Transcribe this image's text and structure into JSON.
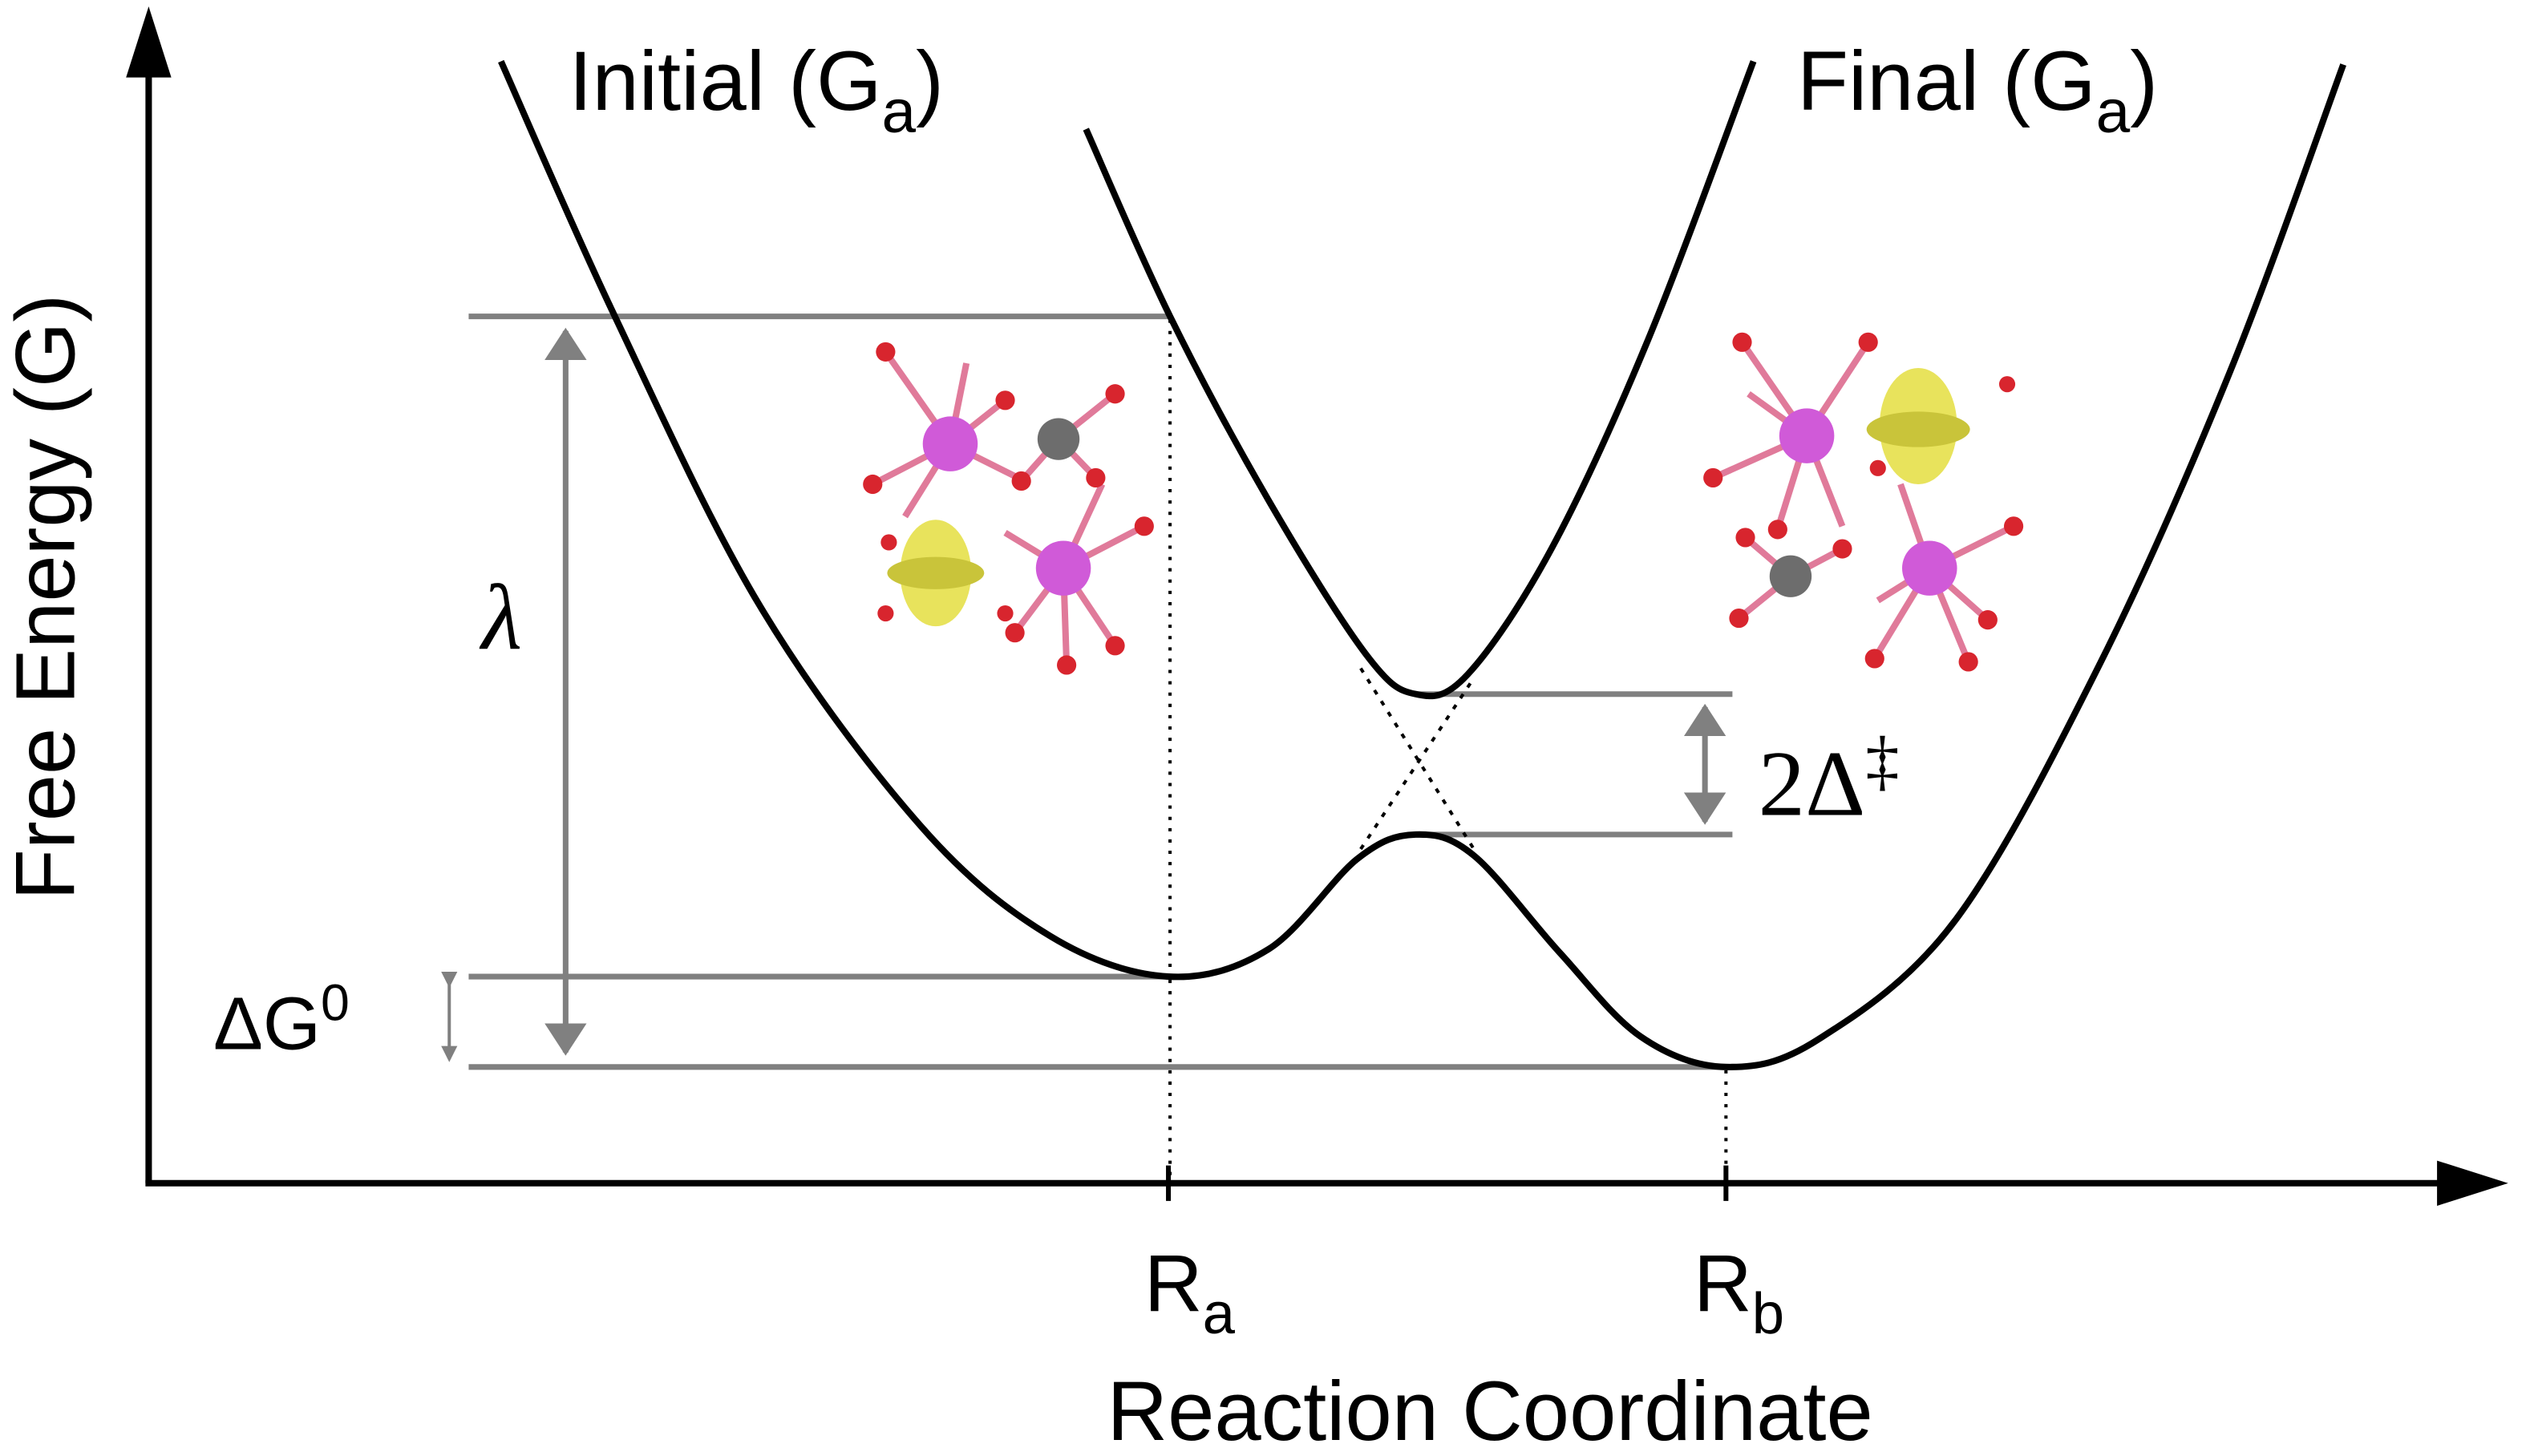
{
  "curves": {
    "initial": {
      "label": "Initial (G",
      "subscript": "a",
      "suffix": ")"
    },
    "final": {
      "label": "Final (G",
      "subscript": "a",
      "suffix": ")"
    }
  },
  "axes": {
    "y_label": "Free Energy (G)",
    "x_label": "Reaction Coordinate",
    "x_ticks": [
      {
        "label": "R",
        "subscript": "a"
      },
      {
        "label": "R",
        "subscript": "b"
      }
    ]
  },
  "annotations": {
    "reorganization": "λ",
    "free_energy_change": {
      "label": "ΔG",
      "superscript": "0"
    },
    "coupling": {
      "label": "2Δ",
      "superscript": "‡"
    }
  }
}
